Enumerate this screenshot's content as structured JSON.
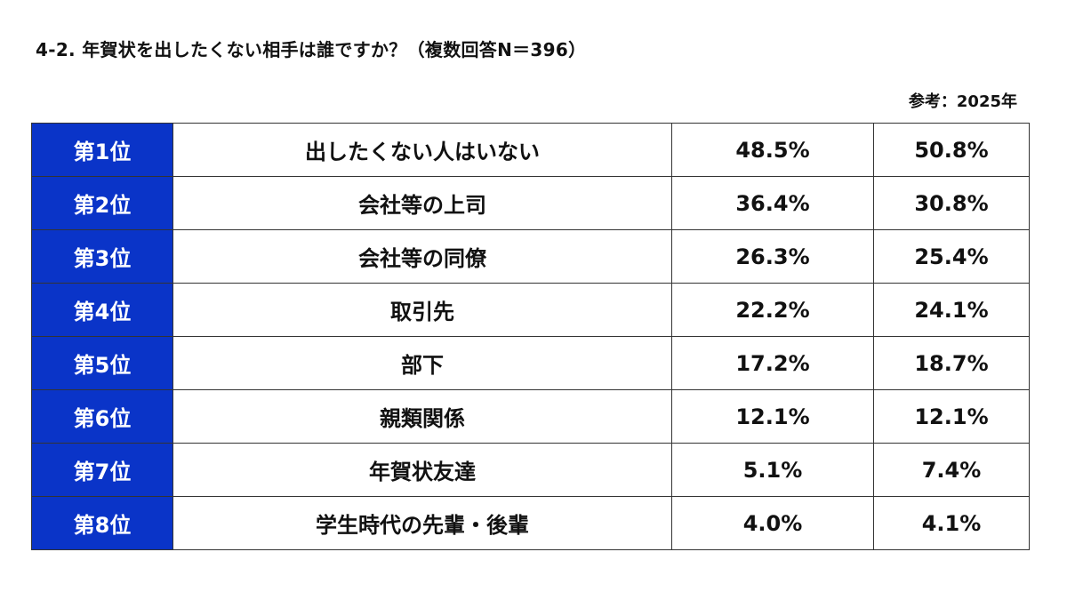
{
  "title": "4-2. 年賀状を出したくない相手は誰ですか？（複数回答N＝396）",
  "reference_label": "参考：2025年",
  "colors": {
    "rank_bg": "#0a34c8"
  },
  "rows": [
    {
      "rank": "第1位",
      "item": "出したくない人はいない",
      "current": "48.5%",
      "ref_2025": "50.8%"
    },
    {
      "rank": "第2位",
      "item": "会社等の上司",
      "current": "36.4%",
      "ref_2025": "30.8%"
    },
    {
      "rank": "第3位",
      "item": "会社等の同僚",
      "current": "26.3%",
      "ref_2025": "25.4%"
    },
    {
      "rank": "第4位",
      "item": "取引先",
      "current": "22.2%",
      "ref_2025": "24.1%"
    },
    {
      "rank": "第5位",
      "item": "部下",
      "current": "17.2%",
      "ref_2025": "18.7%"
    },
    {
      "rank": "第6位",
      "item": "親類関係",
      "current": "12.1%",
      "ref_2025": "12.1%"
    },
    {
      "rank": "第7位",
      "item": "年賀状友達",
      "current": "5.1%",
      "ref_2025": "7.4%"
    },
    {
      "rank": "第8位",
      "item": "学生時代の先輩・後輩",
      "current": "4.0%",
      "ref_2025": "4.1%"
    }
  ]
}
